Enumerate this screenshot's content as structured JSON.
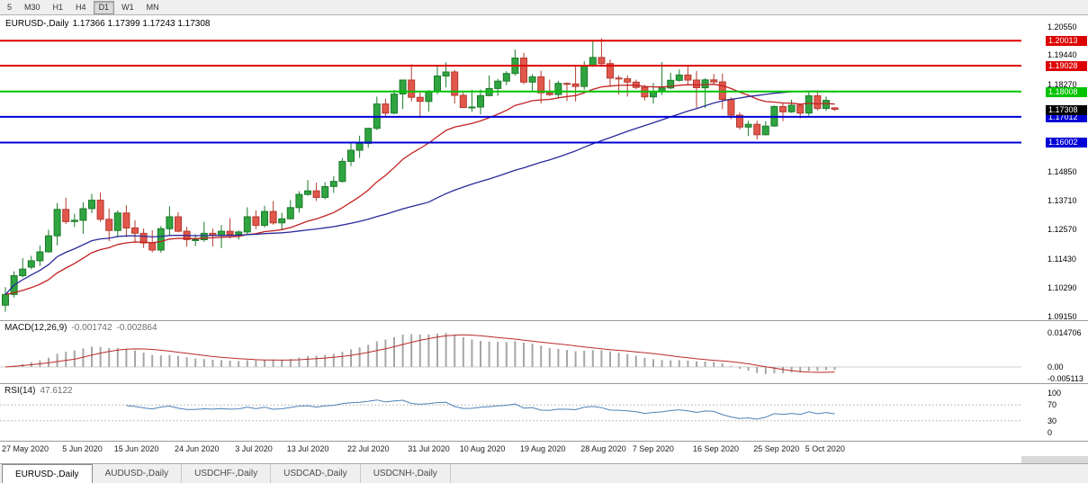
{
  "toolbar": {
    "timeframes": [
      {
        "label": "5",
        "active": false
      },
      {
        "label": "M30",
        "active": false
      },
      {
        "label": "H1",
        "active": false
      },
      {
        "label": "H4",
        "active": false
      },
      {
        "label": "D1",
        "active": true
      },
      {
        "label": "W1",
        "active": false
      },
      {
        "label": "MN",
        "active": false
      }
    ]
  },
  "chart": {
    "symbol": "EURUSD-,Daily",
    "ohlc_text": "1.17366 1.17399 1.17243 1.17308",
    "colors": {
      "up": "#2fa440",
      "up_border": "#1c7a2a",
      "down": "#e2574b",
      "down_border": "#b43a30",
      "ma_fast": "#c22121",
      "ma_slow": "#2a2a9c"
    },
    "y_ticks": [
      {
        "label": "1.20550",
        "value": 1.2055
      },
      {
        "label": "1.19440",
        "value": 1.1944
      },
      {
        "label": "1.18270",
        "value": 1.1827
      },
      {
        "label": "1.14850",
        "value": 1.1485
      },
      {
        "label": "1.13710",
        "value": 1.1371
      },
      {
        "label": "1.12570",
        "value": 1.1257
      },
      {
        "label": "1.11430",
        "value": 1.1143
      },
      {
        "label": "1.10290",
        "value": 1.1029
      },
      {
        "label": "1.09150",
        "value": 1.0915
      }
    ],
    "levels": [
      {
        "label": "1.20013",
        "value": 1.20013,
        "color": "#dd0000"
      },
      {
        "label": "1.19028",
        "value": 1.19028,
        "color": "#dd0000"
      },
      {
        "label": "1.18008",
        "value": 1.18008,
        "color": "#00c300"
      },
      {
        "label": "1.17012",
        "value": 1.17012,
        "color": "#0000d6"
      },
      {
        "label": "1.16002",
        "value": 1.16002,
        "color": "#0000d6"
      }
    ],
    "current": {
      "label": "1.17308",
      "value": 1.17308,
      "color": "#000000"
    }
  },
  "macd": {
    "label": "MACD(12,26,9)",
    "value_main": "-0.001742",
    "value_signal": "-0.002864",
    "fast": 12,
    "slow": 26,
    "signal": 9,
    "ticks": [
      {
        "label": "0.014706",
        "value": 0.014706
      },
      {
        "label": "0.00",
        "value": 0
      },
      {
        "label": "-0.005113",
        "value": -0.005113
      }
    ],
    "colors": {
      "hist": "#a6a6a6",
      "signal": "#bb2a2a",
      "zero": "#cfcfcf"
    }
  },
  "rsi": {
    "label": "RSI(14)",
    "value": "47.6122",
    "period": 14,
    "ticks": [
      {
        "label": "100",
        "value": 100
      },
      {
        "label": "70",
        "value": 70
      },
      {
        "label": "30",
        "value": 30
      },
      {
        "label": "0",
        "value": 0
      }
    ],
    "guide_levels": [
      70,
      30
    ],
    "color": "#4d82b8"
  },
  "tabs": [
    {
      "label": "EURUSD-,Daily",
      "active": true
    },
    {
      "label": "AUDUSD-,Daily",
      "active": false
    },
    {
      "label": "USDCHF-,Daily",
      "active": false
    },
    {
      "label": "USDCAD-,Daily",
      "active": false
    },
    {
      "label": "USDCNH-,Daily",
      "active": false
    }
  ],
  "chart_data": {
    "type": "candlestick",
    "symbol": "EURUSD",
    "timeframe": "Daily",
    "y_range": [
      1.0915,
      1.2055
    ],
    "x_ticks": [
      {
        "i": 0,
        "label": "27 May 2020"
      },
      {
        "i": 7,
        "label": "5 Jun 2020"
      },
      {
        "i": 13,
        "label": "15 Jun 2020"
      },
      {
        "i": 20,
        "label": "24 Jun 2020"
      },
      {
        "i": 27,
        "label": "3 Jul 2020"
      },
      {
        "i": 33,
        "label": "13 Jul 2020"
      },
      {
        "i": 40,
        "label": "22 Jul 2020"
      },
      {
        "i": 47,
        "label": "31 Jul 2020"
      },
      {
        "i": 53,
        "label": "10 Aug 2020"
      },
      {
        "i": 60,
        "label": "19 Aug 2020"
      },
      {
        "i": 67,
        "label": "28 Aug 2020"
      },
      {
        "i": 73,
        "label": "7 Sep 2020"
      },
      {
        "i": 80,
        "label": "16 Sep 2020"
      },
      {
        "i": 87,
        "label": "25 Sep 2020"
      },
      {
        "i": 93,
        "label": "5 Oct 2020"
      }
    ],
    "overlays": [
      {
        "type": "ema",
        "period": 20,
        "color": "#c22121"
      },
      {
        "type": "sma",
        "period": 50,
        "color": "#2a2a9c"
      }
    ],
    "ohlc": [
      [
        1.096,
        1.1031,
        1.0934,
        1.1002
      ],
      [
        1.1002,
        1.1093,
        1.099,
        1.1076
      ],
      [
        1.1076,
        1.1145,
        1.1069,
        1.1102
      ],
      [
        1.111,
        1.1154,
        1.1101,
        1.1135
      ],
      [
        1.1135,
        1.1195,
        1.1114,
        1.117
      ],
      [
        1.117,
        1.1257,
        1.1167,
        1.1233
      ],
      [
        1.1233,
        1.1362,
        1.1195,
        1.1337
      ],
      [
        1.1337,
        1.1383,
        1.1279,
        1.1289
      ],
      [
        1.1289,
        1.132,
        1.1268,
        1.1294
      ],
      [
        1.1294,
        1.1365,
        1.1241,
        1.134
      ],
      [
        1.134,
        1.1398,
        1.1322,
        1.1373
      ],
      [
        1.1373,
        1.1404,
        1.1288,
        1.1298
      ],
      [
        1.1298,
        1.1341,
        1.1212,
        1.1254
      ],
      [
        1.1254,
        1.1333,
        1.1227,
        1.1323
      ],
      [
        1.1323,
        1.1353,
        1.1228,
        1.1264
      ],
      [
        1.1264,
        1.1294,
        1.1204,
        1.1243
      ],
      [
        1.1243,
        1.1262,
        1.1185,
        1.1205
      ],
      [
        1.1205,
        1.1255,
        1.1168,
        1.1177
      ],
      [
        1.1177,
        1.1271,
        1.1167,
        1.1261
      ],
      [
        1.1261,
        1.1349,
        1.1232,
        1.1308
      ],
      [
        1.1308,
        1.1326,
        1.1247,
        1.1251
      ],
      [
        1.1251,
        1.1268,
        1.119,
        1.1218
      ],
      [
        1.1218,
        1.1239,
        1.1193,
        1.1218
      ],
      [
        1.1218,
        1.1288,
        1.121,
        1.1243
      ],
      [
        1.1243,
        1.1261,
        1.1191,
        1.1234
      ],
      [
        1.1234,
        1.1275,
        1.1184,
        1.1251
      ],
      [
        1.1251,
        1.1302,
        1.1223,
        1.1239
      ],
      [
        1.1239,
        1.1254,
        1.1218,
        1.1248
      ],
      [
        1.1248,
        1.1345,
        1.124,
        1.1308
      ],
      [
        1.1308,
        1.1333,
        1.1259,
        1.1274
      ],
      [
        1.1274,
        1.1351,
        1.1266,
        1.1329
      ],
      [
        1.1329,
        1.137,
        1.1277,
        1.1284
      ],
      [
        1.1284,
        1.1324,
        1.1254,
        1.13
      ],
      [
        1.13,
        1.1374,
        1.1297,
        1.1344
      ],
      [
        1.1344,
        1.1409,
        1.1324,
        1.1396
      ],
      [
        1.1396,
        1.1452,
        1.1391,
        1.141
      ],
      [
        1.141,
        1.1442,
        1.137,
        1.1384
      ],
      [
        1.1384,
        1.1444,
        1.1377,
        1.1427
      ],
      [
        1.1427,
        1.1468,
        1.1402,
        1.1447
      ],
      [
        1.1447,
        1.1539,
        1.1442,
        1.1526
      ],
      [
        1.1526,
        1.1601,
        1.1507,
        1.157
      ],
      [
        1.157,
        1.1627,
        1.154,
        1.1597
      ],
      [
        1.1597,
        1.1658,
        1.158,
        1.1656
      ],
      [
        1.1656,
        1.1781,
        1.1649,
        1.1752
      ],
      [
        1.1752,
        1.1773,
        1.17,
        1.1716
      ],
      [
        1.1716,
        1.1807,
        1.1712,
        1.1791
      ],
      [
        1.1791,
        1.1847,
        1.1732,
        1.1846
      ],
      [
        1.1846,
        1.1908,
        1.1762,
        1.1778
      ],
      [
        1.1778,
        1.1797,
        1.1696,
        1.1762
      ],
      [
        1.1762,
        1.1807,
        1.1722,
        1.1802
      ],
      [
        1.1802,
        1.1905,
        1.1791,
        1.1862
      ],
      [
        1.1862,
        1.1916,
        1.1817,
        1.1878
      ],
      [
        1.1878,
        1.1886,
        1.1754,
        1.1786
      ],
      [
        1.1786,
        1.1797,
        1.1736,
        1.1738
      ],
      [
        1.1738,
        1.1808,
        1.1722,
        1.174
      ],
      [
        1.174,
        1.1809,
        1.1711,
        1.1785
      ],
      [
        1.1785,
        1.1864,
        1.1782,
        1.1813
      ],
      [
        1.1813,
        1.1851,
        1.1783,
        1.1842
      ],
      [
        1.1842,
        1.1881,
        1.1826,
        1.1872
      ],
      [
        1.1872,
        1.1966,
        1.1863,
        1.1933
      ],
      [
        1.1933,
        1.1953,
        1.183,
        1.1838
      ],
      [
        1.1838,
        1.1869,
        1.1802,
        1.1859
      ],
      [
        1.1859,
        1.1883,
        1.1754,
        1.1796
      ],
      [
        1.1796,
        1.1848,
        1.1783,
        1.1789
      ],
      [
        1.1789,
        1.1843,
        1.1774,
        1.1833
      ],
      [
        1.1833,
        1.1837,
        1.1763,
        1.1831
      ],
      [
        1.1831,
        1.19,
        1.1762,
        1.1821
      ],
      [
        1.1821,
        1.192,
        1.1808,
        1.1903
      ],
      [
        1.1903,
        1.1998,
        1.1898,
        1.1935
      ],
      [
        1.1935,
        1.2011,
        1.1899,
        1.1911
      ],
      [
        1.1911,
        1.1927,
        1.1822,
        1.1854
      ],
      [
        1.1854,
        1.1865,
        1.1789,
        1.1851
      ],
      [
        1.1851,
        1.1865,
        1.1781,
        1.1838
      ],
      [
        1.1838,
        1.1848,
        1.181,
        1.1817
      ],
      [
        1.1817,
        1.1827,
        1.1766,
        1.178
      ],
      [
        1.178,
        1.1834,
        1.1753,
        1.1802
      ],
      [
        1.1802,
        1.1917,
        1.1788,
        1.1815
      ],
      [
        1.1815,
        1.1874,
        1.181,
        1.1845
      ],
      [
        1.1845,
        1.1888,
        1.184,
        1.1866
      ],
      [
        1.1866,
        1.19,
        1.1829,
        1.1846
      ],
      [
        1.1846,
        1.1882,
        1.1737,
        1.1816
      ],
      [
        1.1816,
        1.1853,
        1.1736,
        1.1847
      ],
      [
        1.1847,
        1.187,
        1.1827,
        1.1839
      ],
      [
        1.1839,
        1.1872,
        1.1731,
        1.177
      ],
      [
        1.177,
        1.1778,
        1.1692,
        1.1708
      ],
      [
        1.1708,
        1.1719,
        1.1651,
        1.1661
      ],
      [
        1.1661,
        1.1686,
        1.1626,
        1.1672
      ],
      [
        1.1672,
        1.1686,
        1.1612,
        1.1631
      ],
      [
        1.1631,
        1.1684,
        1.1628,
        1.1665
      ],
      [
        1.1665,
        1.1746,
        1.1662,
        1.1742
      ],
      [
        1.1742,
        1.1755,
        1.1684,
        1.1721
      ],
      [
        1.1721,
        1.1769,
        1.1717,
        1.1747
      ],
      [
        1.1747,
        1.1752,
        1.1695,
        1.1716
      ],
      [
        1.1716,
        1.1798,
        1.1706,
        1.1784
      ],
      [
        1.1784,
        1.1798,
        1.1726,
        1.1734
      ],
      [
        1.1734,
        1.1781,
        1.1725,
        1.1766
      ],
      [
        1.17366,
        1.17399,
        1.17243,
        1.17308
      ]
    ]
  }
}
